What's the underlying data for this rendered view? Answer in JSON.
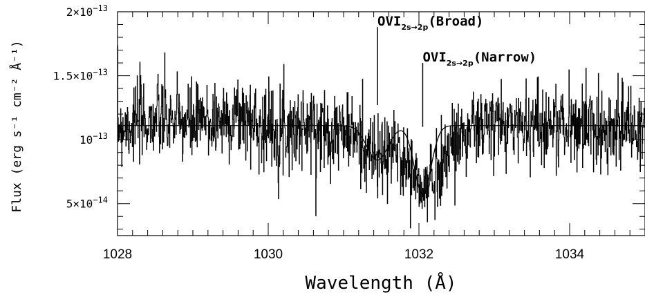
{
  "chart_data": {
    "type": "line",
    "xlabel": "Wavelength (Å)",
    "ylabel": "Flux (erg s⁻¹ cm⁻² Å⁻¹)",
    "xlim": [
      1028,
      1035
    ],
    "ylim": [
      2.5e-14,
      2e-13
    ],
    "x_ticks": [
      {
        "value": 1028,
        "label": "1028"
      },
      {
        "value": 1030,
        "label": "1030"
      },
      {
        "value": 1032,
        "label": "1032"
      },
      {
        "value": 1034,
        "label": "1034"
      }
    ],
    "y_ticks": [
      {
        "value": 5e-14,
        "mantissa": "5",
        "exponent": "−14"
      },
      {
        "value": 1e-13,
        "mantissa": "",
        "exponent": "−13"
      },
      {
        "value": 1.5e-13,
        "mantissa": "1.5",
        "exponent": "−13"
      },
      {
        "value": 2e-13,
        "mantissa": "2",
        "exponent": "−13"
      }
    ],
    "annotations": [
      {
        "main": "OVI",
        "sub": "2s→2p",
        "suffix": "(Broad)",
        "x": 1031.45,
        "y_base": 1.27e-13,
        "y_top": 1.88e-13
      },
      {
        "main": "OVI",
        "sub": "2s→2p",
        "suffix": "(Narrow)",
        "x": 1032.05,
        "y_base": 1.1e-13,
        "y_top": 1.6e-13
      }
    ],
    "series": [
      {
        "style": "histogram",
        "continuum": 1.11e-13,
        "noise_sigma": 1.6e-14,
        "bin_width": 0.005,
        "seed": 7,
        "profile": [
          [
            1028.0,
            1.11e-13
          ],
          [
            1028.5,
            1.16e-13
          ],
          [
            1029.0,
            1.12e-13
          ],
          [
            1029.6,
            1.18e-13
          ],
          [
            1030.0,
            1.1e-13
          ],
          [
            1030.6,
            1.09e-13
          ],
          [
            1031.0,
            1.07e-13
          ],
          [
            1031.2,
            1e-13
          ],
          [
            1031.45,
            8.4e-14
          ],
          [
            1031.7,
            9.2e-14
          ],
          [
            1031.9,
            7.5e-14
          ],
          [
            1032.05,
            5.8e-14
          ],
          [
            1032.25,
            7.8e-14
          ],
          [
            1032.5,
            1.02e-13
          ],
          [
            1032.8,
            1.1e-13
          ],
          [
            1033.4,
            1.13e-13
          ],
          [
            1034.0,
            1.11e-13
          ],
          [
            1035.0,
            1.09e-13
          ]
        ]
      },
      {
        "style": "model",
        "continuum": 1.11e-13,
        "components": [
          {
            "center": 1031.45,
            "depth": 2.7e-14,
            "sigma": 0.14
          },
          {
            "center": 1032.05,
            "depth": 5.4e-14,
            "sigma": 0.11
          }
        ]
      }
    ]
  }
}
